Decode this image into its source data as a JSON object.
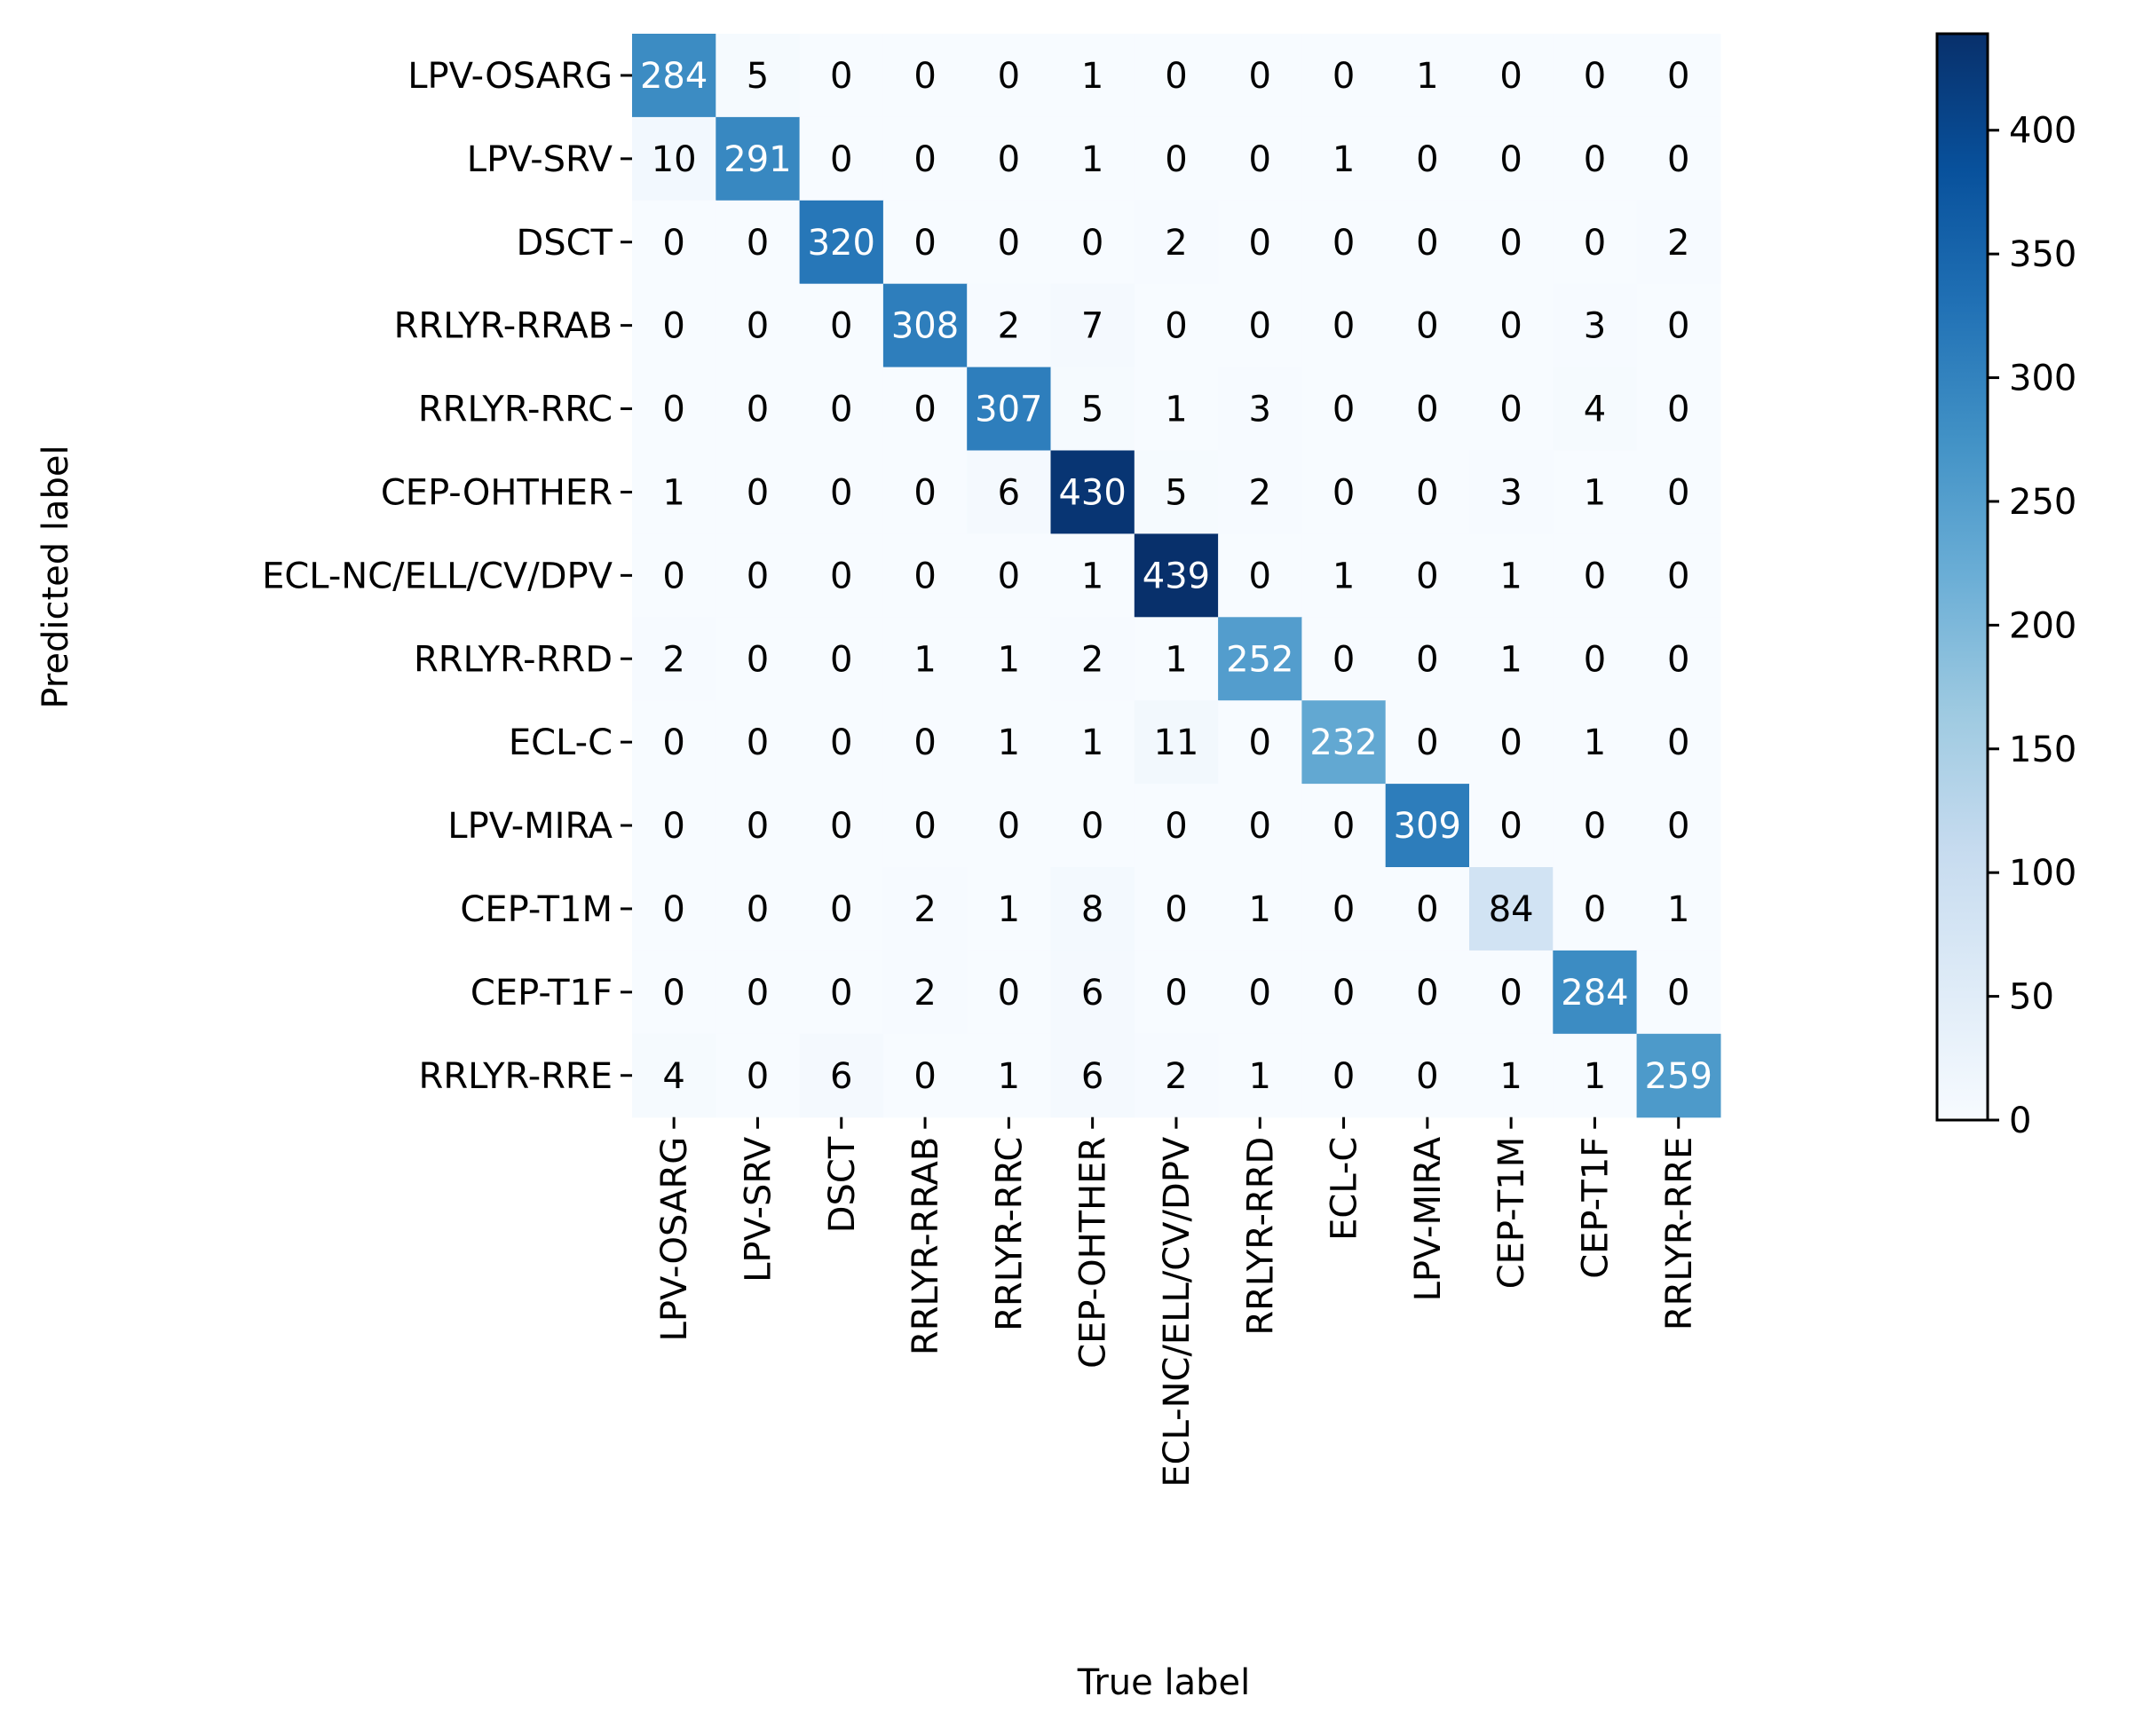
{
  "chart_data": {
    "type": "heatmap",
    "title": "",
    "xlabel": "True label",
    "ylabel": "Predicted label",
    "colormap": "Blues",
    "row_labels": [
      "LPV-OSARG",
      "LPV-SRV",
      "DSCT",
      "RRLYR-RRAB",
      "RRLYR-RRC",
      "CEP-OHTHER",
      "ECL-NC/ELL/CV/DPV",
      "RRLYR-RRD",
      "ECL-C",
      "LPV-MIRA",
      "CEP-T1M",
      "CEP-T1F",
      "RRLYR-RRE"
    ],
    "col_labels": [
      "LPV-OSARG",
      "LPV-SRV",
      "DSCT",
      "RRLYR-RRAB",
      "RRLYR-RRC",
      "CEP-OHTHER",
      "ECL-NC/ELL/CV/DPV",
      "RRLYR-RRD",
      "ECL-C",
      "LPV-MIRA",
      "CEP-T1M",
      "CEP-T1F",
      "RRLYR-RRE"
    ],
    "values": [
      [
        284,
        5,
        0,
        0,
        0,
        1,
        0,
        0,
        0,
        1,
        0,
        0,
        0
      ],
      [
        10,
        291,
        0,
        0,
        0,
        1,
        0,
        0,
        1,
        0,
        0,
        0,
        0
      ],
      [
        0,
        0,
        320,
        0,
        0,
        0,
        2,
        0,
        0,
        0,
        0,
        0,
        2
      ],
      [
        0,
        0,
        0,
        308,
        2,
        7,
        0,
        0,
        0,
        0,
        0,
        3,
        0
      ],
      [
        0,
        0,
        0,
        0,
        307,
        5,
        1,
        3,
        0,
        0,
        0,
        4,
        0
      ],
      [
        1,
        0,
        0,
        0,
        6,
        430,
        5,
        2,
        0,
        0,
        3,
        1,
        0
      ],
      [
        0,
        0,
        0,
        0,
        0,
        1,
        439,
        0,
        1,
        0,
        1,
        0,
        0
      ],
      [
        2,
        0,
        0,
        1,
        1,
        2,
        1,
        252,
        0,
        0,
        1,
        0,
        0
      ],
      [
        0,
        0,
        0,
        0,
        1,
        1,
        11,
        0,
        232,
        0,
        0,
        1,
        0
      ],
      [
        0,
        0,
        0,
        0,
        0,
        0,
        0,
        0,
        0,
        309,
        0,
        0,
        0
      ],
      [
        0,
        0,
        0,
        2,
        1,
        8,
        0,
        1,
        0,
        0,
        84,
        0,
        1
      ],
      [
        0,
        0,
        0,
        2,
        0,
        6,
        0,
        0,
        0,
        0,
        0,
        284,
        0
      ],
      [
        4,
        0,
        6,
        0,
        1,
        6,
        2,
        1,
        0,
        0,
        1,
        1,
        259
      ]
    ],
    "colorbar": {
      "vmin": 0,
      "vmax": 439,
      "ticks": [
        0,
        50,
        100,
        150,
        200,
        250,
        300,
        350,
        400
      ]
    }
  }
}
